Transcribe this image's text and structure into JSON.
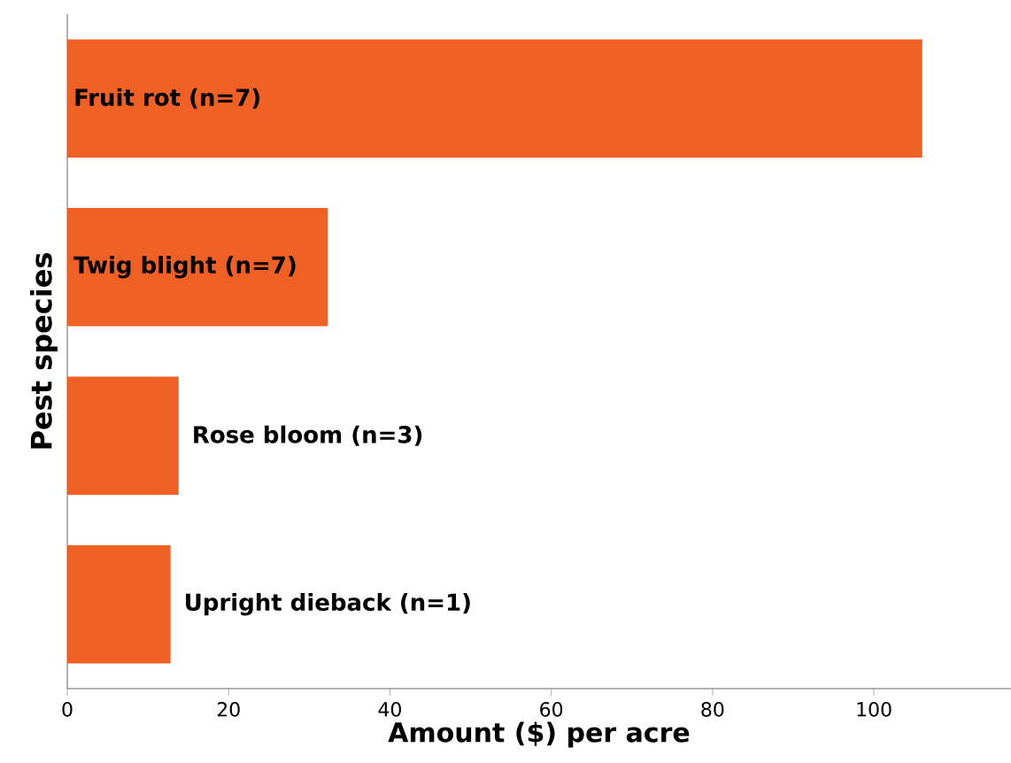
{
  "chart_data": {
    "type": "bar",
    "orientation": "horizontal",
    "xlabel": "Amount ($) per acre",
    "ylabel": "Pest species",
    "categories": [
      "Fruit rot (n=7)",
      "Twig blight (n=7)",
      "Rose bloom (n=3)",
      "Upright dieback (n=1)"
    ],
    "values": [
      106,
      32.3,
      13.8,
      12.8
    ],
    "color": "#f05f24",
    "xlim": [
      0,
      117
    ],
    "xticks": [
      0,
      20,
      40,
      60,
      80,
      100
    ]
  }
}
